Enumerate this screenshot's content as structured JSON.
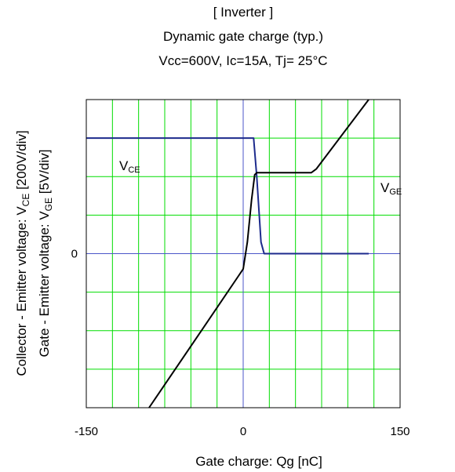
{
  "titles": {
    "line1": "[ Inverter ]",
    "line2": "Dynamic gate charge  (typ.)",
    "line3": "Vcc=600V,   Ic=15A,   Tj= 25°C"
  },
  "chart_data": {
    "type": "line",
    "title": "[ Inverter ] Dynamic gate charge (typ.)",
    "subtitle": "Vcc=600V,   Ic=15A,   Tj= 25°C",
    "xlabel": "Gate charge: Qg [nC]",
    "ylabel_line1": "Collector - Emitter voltage: V_CE [200V/div]",
    "ylabel_line2": "Gate - Emitter voltage:   V_GE [5V/div]",
    "xlim": [
      -150,
      150
    ],
    "ylim_div": [
      -4,
      4
    ],
    "x_ticks": [
      {
        "value": -150,
        "label": "-150"
      },
      {
        "value": 0,
        "label": "0"
      },
      {
        "value": 150,
        "label": "150"
      }
    ],
    "y_ticks": [
      {
        "value": 0,
        "label": "0"
      }
    ],
    "grid": true,
    "series": [
      {
        "name": "VCE",
        "label_base": "V",
        "label_sub": "CE",
        "color": "#1c2a8c",
        "points_div": [
          [
            -150,
            3
          ],
          [
            10,
            3
          ],
          [
            13,
            2
          ],
          [
            17,
            0.3
          ],
          [
            20,
            0
          ],
          [
            120,
            0
          ]
        ]
      },
      {
        "name": "VGE",
        "label_base": "V",
        "label_sub": "GE",
        "color": "#000000",
        "points_div": [
          [
            -90,
            -4
          ],
          [
            -40,
            -2
          ],
          [
            -5,
            -0.6
          ],
          [
            0,
            -0.4
          ],
          [
            4,
            0.3
          ],
          [
            8,
            1.4
          ],
          [
            11,
            2.05
          ],
          [
            13,
            2.1
          ],
          [
            65,
            2.1
          ],
          [
            70,
            2.2
          ],
          [
            120,
            4
          ]
        ]
      }
    ],
    "series_labels": [
      {
        "series": "VCE",
        "text_base": "V",
        "text_sub": "CE"
      },
      {
        "series": "VGE",
        "text_base": "V",
        "text_sub": "GE"
      }
    ]
  },
  "colors": {
    "grid": "#00dd00",
    "zero_lines": "#4b55c8",
    "frame": "#000000"
  }
}
